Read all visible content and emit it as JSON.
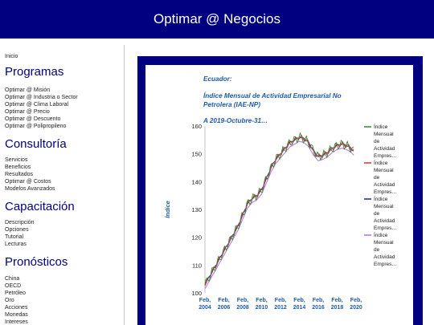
{
  "header": {
    "title": "Optimar @ Negocios"
  },
  "sidebar": {
    "home": "Inicio",
    "sections": [
      {
        "title": "Programas",
        "items": [
          "Optimar @ Misión",
          "Optimar @ Industria o Sector",
          "Optimar @ Clima Laboral",
          "Optimar @ Precio",
          "Optimar @ Descuento",
          "Optimar @ Polipropileno"
        ]
      },
      {
        "title": "Consultoría",
        "items": [
          "Servicios",
          "Beneficios",
          "Resultados",
          "Optimar @ Costos",
          "Modelos Avanzados"
        ]
      },
      {
        "title": "Capacitación",
        "items": [
          "Descripción",
          "Opciones",
          "Tutorial",
          "Lecturas"
        ]
      },
      {
        "title": "Pronósticos",
        "items": [
          "China",
          "OECD",
          "Petróleo",
          "Oro",
          "Acciones",
          "Monedas",
          "Intereses"
        ]
      }
    ]
  },
  "chart_title": {
    "line1": "Ecuador:",
    "line2": "Índice Mensual de Actividad Empresarial No",
    "line3": "Petrolera (IAE-NP)",
    "line4": "A 2019-Octubre-31…"
  },
  "chart_data": {
    "type": "line",
    "ylabel": "Índice",
    "ylim": [
      100,
      160
    ],
    "yticks": [
      "100",
      "110",
      "120",
      "130",
      "140",
      "150",
      "160"
    ],
    "xlim": [
      2004,
      2020
    ],
    "xticks": [
      {
        "top": "Feb,",
        "bottom": "2004",
        "x": 2004
      },
      {
        "top": "Feb,",
        "bottom": "2006",
        "x": 2006
      },
      {
        "top": "Feb,",
        "bottom": "2008",
        "x": 2008
      },
      {
        "top": "Feb,",
        "bottom": "2010",
        "x": 2010
      },
      {
        "top": "Feb,",
        "bottom": "2012",
        "x": 2012
      },
      {
        "top": "Feb,",
        "bottom": "2014",
        "x": 2014
      },
      {
        "top": "Feb,",
        "bottom": "2016",
        "x": 2016
      },
      {
        "top": "Feb,",
        "bottom": "2018",
        "x": 2018
      },
      {
        "top": "Feb,",
        "bottom": "2020",
        "x": 2020
      }
    ],
    "base": {
      "x": [
        2004.0,
        2004.5,
        2005.0,
        2005.5,
        2006.0,
        2006.5,
        2007.0,
        2007.5,
        2008.0,
        2008.5,
        2009.0,
        2009.5,
        2010.0,
        2010.5,
        2011.0,
        2011.5,
        2012.0,
        2012.5,
        2013.0,
        2013.5,
        2014.0,
        2014.5,
        2015.0,
        2015.5,
        2016.0,
        2016.5,
        2017.0,
        2017.5,
        2018.0,
        2018.5,
        2019.0,
        2019.5,
        2019.75
      ],
      "y": [
        103,
        106,
        109,
        112,
        115,
        118,
        121,
        124,
        128,
        132,
        134,
        135,
        137,
        141,
        145,
        148,
        150,
        152,
        154,
        155,
        156,
        155.5,
        154,
        151,
        149,
        149.5,
        150.5,
        152,
        153,
        153.5,
        153,
        152,
        151
      ]
    },
    "series": [
      {
        "name": "Índice Mensual de Actividad Empres…",
        "color": "#2e8b2e",
        "offset": 0,
        "noise": 1.6,
        "lines": [
          "Índice",
          "Mensual",
          "de",
          "Actividad",
          "Empres…"
        ]
      },
      {
        "name": "Índice Mensual de Actividad Empres…",
        "color": "#e03030",
        "offset": 0,
        "noise": 0.9,
        "lines": [
          "Índice",
          "Mensual",
          "de",
          "Actividad",
          "Empres…"
        ]
      },
      {
        "name": "Índice Mensual de Actividad Empres…",
        "color": "#2020b0",
        "offset": 0,
        "noise": 0.3,
        "lines": [
          "Índice",
          "Mensual",
          "de",
          "Actividad",
          "Empres…"
        ]
      },
      {
        "name": "Índice Mensual de Actividad Empres…",
        "color": "#b070e0",
        "offset": -1.5,
        "noise": 0,
        "lines": [
          "Índice",
          "Mensual",
          "de",
          "Actividad",
          "Empres…"
        ]
      }
    ]
  }
}
